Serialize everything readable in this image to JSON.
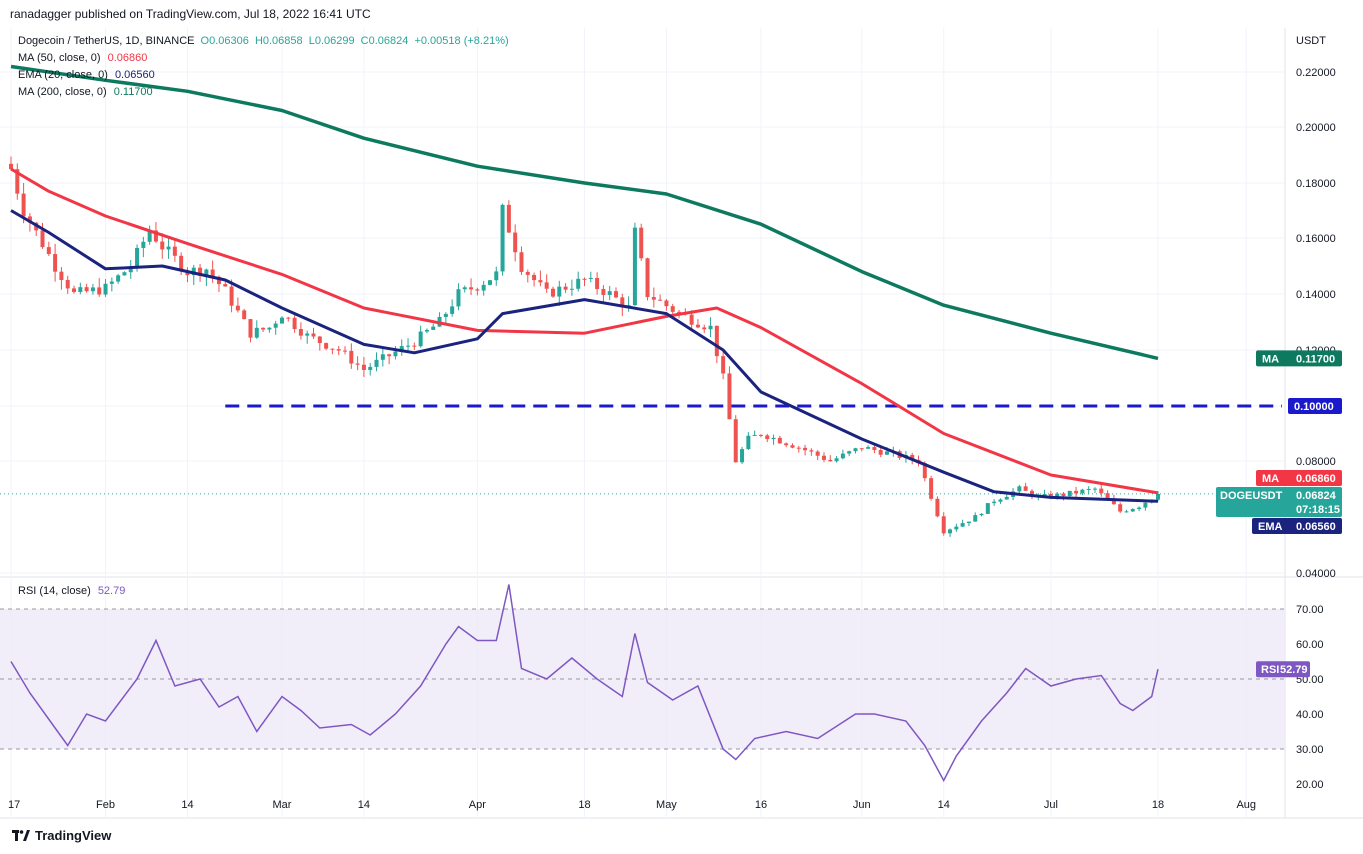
{
  "header": {
    "publisher": "ranadagger published on TradingView.com, Jul 18, 2022 16:41 UTC",
    "symbol": "Dogecoin / TetherUS, 1D, BINANCE",
    "open": "O0.06306",
    "high": "H0.06858",
    "low": "L0.06299",
    "close": "C0.06824",
    "change": "+0.00518 (+8.21%)",
    "ma50_label": "MA (50, close, 0)",
    "ma50_value": "0.06860",
    "ema20_label": "EMA (20, close, 0)",
    "ema20_value": "0.06560",
    "ma200_label": "MA (200, close, 0)",
    "ma200_value": "0.11700",
    "rsi_label": "RSI (14, close)",
    "rsi_value": "52.79"
  },
  "brand": "TradingView",
  "colors": {
    "up": "#26a69a",
    "down": "#ef5350",
    "ma50": "#f23645",
    "ema20": "#1a237e",
    "ma200": "#0d7a5f",
    "rsi": "#7e57c2",
    "rsi_band": "#ede7f6",
    "support_line": "#1a1acc",
    "price_tag": "#26a69a"
  },
  "chart_data": [
    {
      "type": "candlestick",
      "title": "Dogecoin / TetherUS, 1D, BINANCE",
      "y_axis_unit": "USDT",
      "ylim": [
        0.04,
        0.228
      ],
      "y_ticks": [
        "0.22000",
        "0.20000",
        "0.18000",
        "0.16000",
        "0.14000",
        "0.12000",
        "0.10000",
        "0.08000",
        "0.04000"
      ],
      "x_ticks": [
        "17",
        "Feb",
        "14",
        "Mar",
        "14",
        "Apr",
        "18",
        "May",
        "16",
        "Jun",
        "14",
        "Jul",
        "18",
        "Aug"
      ],
      "x_tick_dates": [
        "2022-01-17",
        "2022-02-01",
        "2022-02-14",
        "2022-03-01",
        "2022-03-14",
        "2022-04-01",
        "2022-04-18",
        "2022-05-01",
        "2022-05-16",
        "2022-06-01",
        "2022-06-14",
        "2022-07-01",
        "2022-07-18",
        "2022-08-01"
      ],
      "candles_start_date": "2022-01-17",
      "candles_end_date": "2022-07-18",
      "candle_points": [
        [
          "2022-01-17",
          0.185
        ],
        [
          "2022-01-19",
          0.17
        ],
        [
          "2022-01-22",
          0.158
        ],
        [
          "2022-01-24",
          0.15
        ],
        [
          "2022-01-27",
          0.14
        ],
        [
          "2022-02-01",
          0.142
        ],
        [
          "2022-02-05",
          0.15
        ],
        [
          "2022-02-08",
          0.163
        ],
        [
          "2022-02-10",
          0.157
        ],
        [
          "2022-02-14",
          0.148
        ],
        [
          "2022-02-17",
          0.149
        ],
        [
          "2022-02-20",
          0.141
        ],
        [
          "2022-02-24",
          0.126
        ],
        [
          "2022-02-27",
          0.128
        ],
        [
          "2022-03-01",
          0.133
        ],
        [
          "2022-03-05",
          0.125
        ],
        [
          "2022-03-10",
          0.12
        ],
        [
          "2022-03-14",
          0.113
        ],
        [
          "2022-03-18",
          0.118
        ],
        [
          "2022-03-22",
          0.123
        ],
        [
          "2022-03-26",
          0.13
        ],
        [
          "2022-03-29",
          0.14
        ],
        [
          "2022-04-01",
          0.143
        ],
        [
          "2022-04-04",
          0.147
        ],
        [
          "2022-04-05",
          0.17
        ],
        [
          "2022-04-08",
          0.15
        ],
        [
          "2022-04-12",
          0.14
        ],
        [
          "2022-04-18",
          0.145
        ],
        [
          "2022-04-22",
          0.14
        ],
        [
          "2022-04-25",
          0.135
        ],
        [
          "2022-04-26",
          0.162
        ],
        [
          "2022-04-28",
          0.14
        ],
        [
          "2022-05-03",
          0.133
        ],
        [
          "2022-05-08",
          0.128
        ],
        [
          "2022-05-10",
          0.11
        ],
        [
          "2022-05-11",
          0.095
        ],
        [
          "2022-05-12",
          0.08
        ],
        [
          "2022-05-14",
          0.088
        ],
        [
          "2022-05-16",
          0.09
        ],
        [
          "2022-05-22",
          0.085
        ],
        [
          "2022-05-27",
          0.08
        ],
        [
          "2022-06-01",
          0.085
        ],
        [
          "2022-06-05",
          0.083
        ],
        [
          "2022-06-10",
          0.08
        ],
        [
          "2022-06-13",
          0.061
        ],
        [
          "2022-06-14",
          0.055
        ],
        [
          "2022-06-17",
          0.058
        ],
        [
          "2022-06-19",
          0.06
        ],
        [
          "2022-06-22",
          0.066
        ],
        [
          "2022-06-26",
          0.07
        ],
        [
          "2022-06-29",
          0.067
        ],
        [
          "2022-07-03",
          0.068
        ],
        [
          "2022-07-08",
          0.07
        ],
        [
          "2022-07-12",
          0.062
        ],
        [
          "2022-07-15",
          0.064
        ],
        [
          "2022-07-18",
          0.06824
        ]
      ],
      "series": [
        {
          "name": "MA (50, close, 0)",
          "points": [
            [
              "2022-01-17",
              0.185
            ],
            [
              "2022-01-23",
              0.177
            ],
            [
              "2022-02-01",
              0.168
            ],
            [
              "2022-02-14",
              0.158
            ],
            [
              "2022-03-01",
              0.147
            ],
            [
              "2022-03-14",
              0.135
            ],
            [
              "2022-04-01",
              0.127
            ],
            [
              "2022-04-18",
              0.126
            ],
            [
              "2022-05-01",
              0.132
            ],
            [
              "2022-05-09",
              0.135
            ],
            [
              "2022-05-16",
              0.128
            ],
            [
              "2022-06-01",
              0.108
            ],
            [
              "2022-06-14",
              0.09
            ],
            [
              "2022-07-01",
              0.075
            ],
            [
              "2022-07-18",
              0.0686
            ]
          ]
        },
        {
          "name": "EMA (20, close, 0)",
          "points": [
            [
              "2022-01-17",
              0.17
            ],
            [
              "2022-01-23",
              0.162
            ],
            [
              "2022-02-01",
              0.149
            ],
            [
              "2022-02-10",
              0.15
            ],
            [
              "2022-02-20",
              0.145
            ],
            [
              "2022-03-01",
              0.135
            ],
            [
              "2022-03-14",
              0.122
            ],
            [
              "2022-03-22",
              0.119
            ],
            [
              "2022-04-01",
              0.124
            ],
            [
              "2022-04-05",
              0.133
            ],
            [
              "2022-04-18",
              0.138
            ],
            [
              "2022-05-01",
              0.133
            ],
            [
              "2022-05-10",
              0.12
            ],
            [
              "2022-05-16",
              0.105
            ],
            [
              "2022-06-01",
              0.088
            ],
            [
              "2022-06-14",
              0.076
            ],
            [
              "2022-06-22",
              0.069
            ],
            [
              "2022-07-01",
              0.067
            ],
            [
              "2022-07-18",
              0.0656
            ]
          ]
        },
        {
          "name": "MA (200, close, 0)",
          "points": [
            [
              "2022-01-17",
              0.222
            ],
            [
              "2022-02-01",
              0.217
            ],
            [
              "2022-02-14",
              0.213
            ],
            [
              "2022-03-01",
              0.206
            ],
            [
              "2022-03-14",
              0.196
            ],
            [
              "2022-04-01",
              0.186
            ],
            [
              "2022-04-18",
              0.18
            ],
            [
              "2022-05-01",
              0.176
            ],
            [
              "2022-05-16",
              0.165
            ],
            [
              "2022-06-01",
              0.148
            ],
            [
              "2022-06-14",
              0.136
            ],
            [
              "2022-07-01",
              0.126
            ],
            [
              "2022-07-18",
              0.117
            ]
          ]
        }
      ],
      "horizontal_lines": [
        {
          "value": 0.1,
          "label": "0.10000",
          "style": "dashed",
          "from_date": "2022-02-20",
          "to_date": "2022-08-05"
        }
      ],
      "price_tags": [
        {
          "label": "MA",
          "value": "0.11700",
          "y": 0.117
        },
        {
          "label": "0.10000",
          "value": "",
          "y": 0.1
        },
        {
          "label": "MA",
          "value": "0.06860",
          "y": 0.0686
        },
        {
          "label": "DOGEUSDT",
          "value": "0.06824",
          "sub": "07:18:15",
          "y": 0.06824
        },
        {
          "label": "EMA",
          "value": "0.06560",
          "y": 0.0656
        }
      ]
    },
    {
      "type": "line",
      "title": "RSI (14, close)",
      "ylim": [
        17,
        73
      ],
      "y_ticks": [
        "70.00",
        "60.00",
        "50.00",
        "40.00",
        "30.00",
        "20.00"
      ],
      "bands": {
        "overbought": 70,
        "middle": 50,
        "oversold": 30
      },
      "series": [
        {
          "name": "RSI (14, close)",
          "points": [
            [
              "2022-01-17",
              55
            ],
            [
              "2022-01-20",
              46
            ],
            [
              "2022-01-24",
              36
            ],
            [
              "2022-01-26",
              31
            ],
            [
              "2022-01-29",
              40
            ],
            [
              "2022-02-01",
              38
            ],
            [
              "2022-02-06",
              50
            ],
            [
              "2022-02-09",
              61
            ],
            [
              "2022-02-12",
              48
            ],
            [
              "2022-02-16",
              50
            ],
            [
              "2022-02-19",
              42
            ],
            [
              "2022-02-22",
              45
            ],
            [
              "2022-02-25",
              35
            ],
            [
              "2022-03-01",
              45
            ],
            [
              "2022-03-04",
              41
            ],
            [
              "2022-03-07",
              36
            ],
            [
              "2022-03-12",
              37
            ],
            [
              "2022-03-15",
              34
            ],
            [
              "2022-03-19",
              40
            ],
            [
              "2022-03-23",
              48
            ],
            [
              "2022-03-27",
              60
            ],
            [
              "2022-03-29",
              65
            ],
            [
              "2022-04-01",
              61
            ],
            [
              "2022-04-04",
              61
            ],
            [
              "2022-04-06",
              77
            ],
            [
              "2022-04-08",
              53
            ],
            [
              "2022-04-12",
              50
            ],
            [
              "2022-04-16",
              56
            ],
            [
              "2022-04-20",
              50
            ],
            [
              "2022-04-24",
              45
            ],
            [
              "2022-04-26",
              63
            ],
            [
              "2022-04-28",
              49
            ],
            [
              "2022-05-02",
              44
            ],
            [
              "2022-05-06",
              48
            ],
            [
              "2022-05-10",
              30
            ],
            [
              "2022-05-12",
              27
            ],
            [
              "2022-05-15",
              33
            ],
            [
              "2022-05-20",
              35
            ],
            [
              "2022-05-25",
              33
            ],
            [
              "2022-05-31",
              40
            ],
            [
              "2022-06-03",
              40
            ],
            [
              "2022-06-08",
              38
            ],
            [
              "2022-06-11",
              31
            ],
            [
              "2022-06-14",
              21
            ],
            [
              "2022-06-16",
              28
            ],
            [
              "2022-06-20",
              38
            ],
            [
              "2022-06-24",
              46
            ],
            [
              "2022-06-27",
              53
            ],
            [
              "2022-07-01",
              48
            ],
            [
              "2022-07-05",
              50
            ],
            [
              "2022-07-09",
              51
            ],
            [
              "2022-07-12",
              43
            ],
            [
              "2022-07-14",
              41
            ],
            [
              "2022-07-17",
              45
            ],
            [
              "2022-07-18",
              52.79
            ]
          ]
        }
      ]
    }
  ]
}
